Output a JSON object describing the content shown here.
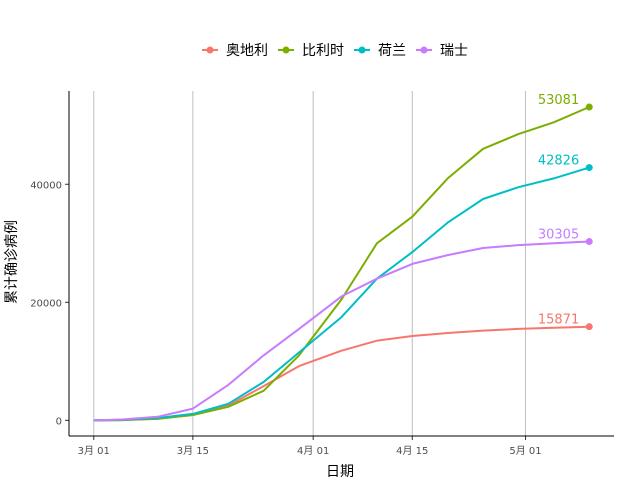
{
  "chart_data": {
    "type": "line",
    "xlabel": "日期",
    "ylabel": "累计确诊病例",
    "x_ticks": [
      "3月 01",
      "3月 15",
      "4月 01",
      "4月 15",
      "5月 01"
    ],
    "x_tick_days": [
      0,
      14,
      31,
      45,
      61
    ],
    "y_ticks": [
      0,
      20000,
      40000
    ],
    "ylim": [
      -2650,
      55800
    ],
    "xlim_days": [
      -3.5,
      73.5
    ],
    "x_dates": [
      "2020-03-01",
      "2020-03-05",
      "2020-03-10",
      "2020-03-15",
      "2020-03-20",
      "2020-03-25",
      "2020-03-30",
      "2020-04-05",
      "2020-04-10",
      "2020-04-15",
      "2020-04-20",
      "2020-04-25",
      "2020-04-30",
      "2020-05-05",
      "2020-05-10"
    ],
    "x_days": [
      0,
      4,
      9,
      14,
      19,
      24,
      29,
      35,
      40,
      45,
      50,
      55,
      60,
      65,
      70
    ],
    "grid": "vertical",
    "legend_position": "top",
    "series": [
      {
        "name": "奥地利",
        "color": "#F8766D",
        "end_label": "15871",
        "values": [
          0,
          50,
          300,
          900,
          2500,
          5800,
          9200,
          11800,
          13500,
          14300,
          14800,
          15200,
          15500,
          15700,
          15871
        ]
      },
      {
        "name": "比利时",
        "color": "#7CAE00",
        "end_label": "53081",
        "values": [
          0,
          50,
          250,
          900,
          2300,
          5000,
          11000,
          20500,
          30000,
          34500,
          41000,
          46000,
          48500,
          50500,
          53081
        ]
      },
      {
        "name": "荷兰",
        "color": "#00BFC4",
        "end_label": "42826",
        "values": [
          0,
          100,
          400,
          1100,
          2800,
          6500,
          11500,
          17500,
          24000,
          28500,
          33500,
          37500,
          39500,
          41000,
          42826
        ]
      },
      {
        "name": "瑞士",
        "color": "#C77CFF",
        "end_label": "30305",
        "values": [
          0,
          150,
          600,
          2000,
          6000,
          11000,
          15500,
          21000,
          24000,
          26500,
          28000,
          29200,
          29700,
          30000,
          30305
        ]
      }
    ]
  }
}
